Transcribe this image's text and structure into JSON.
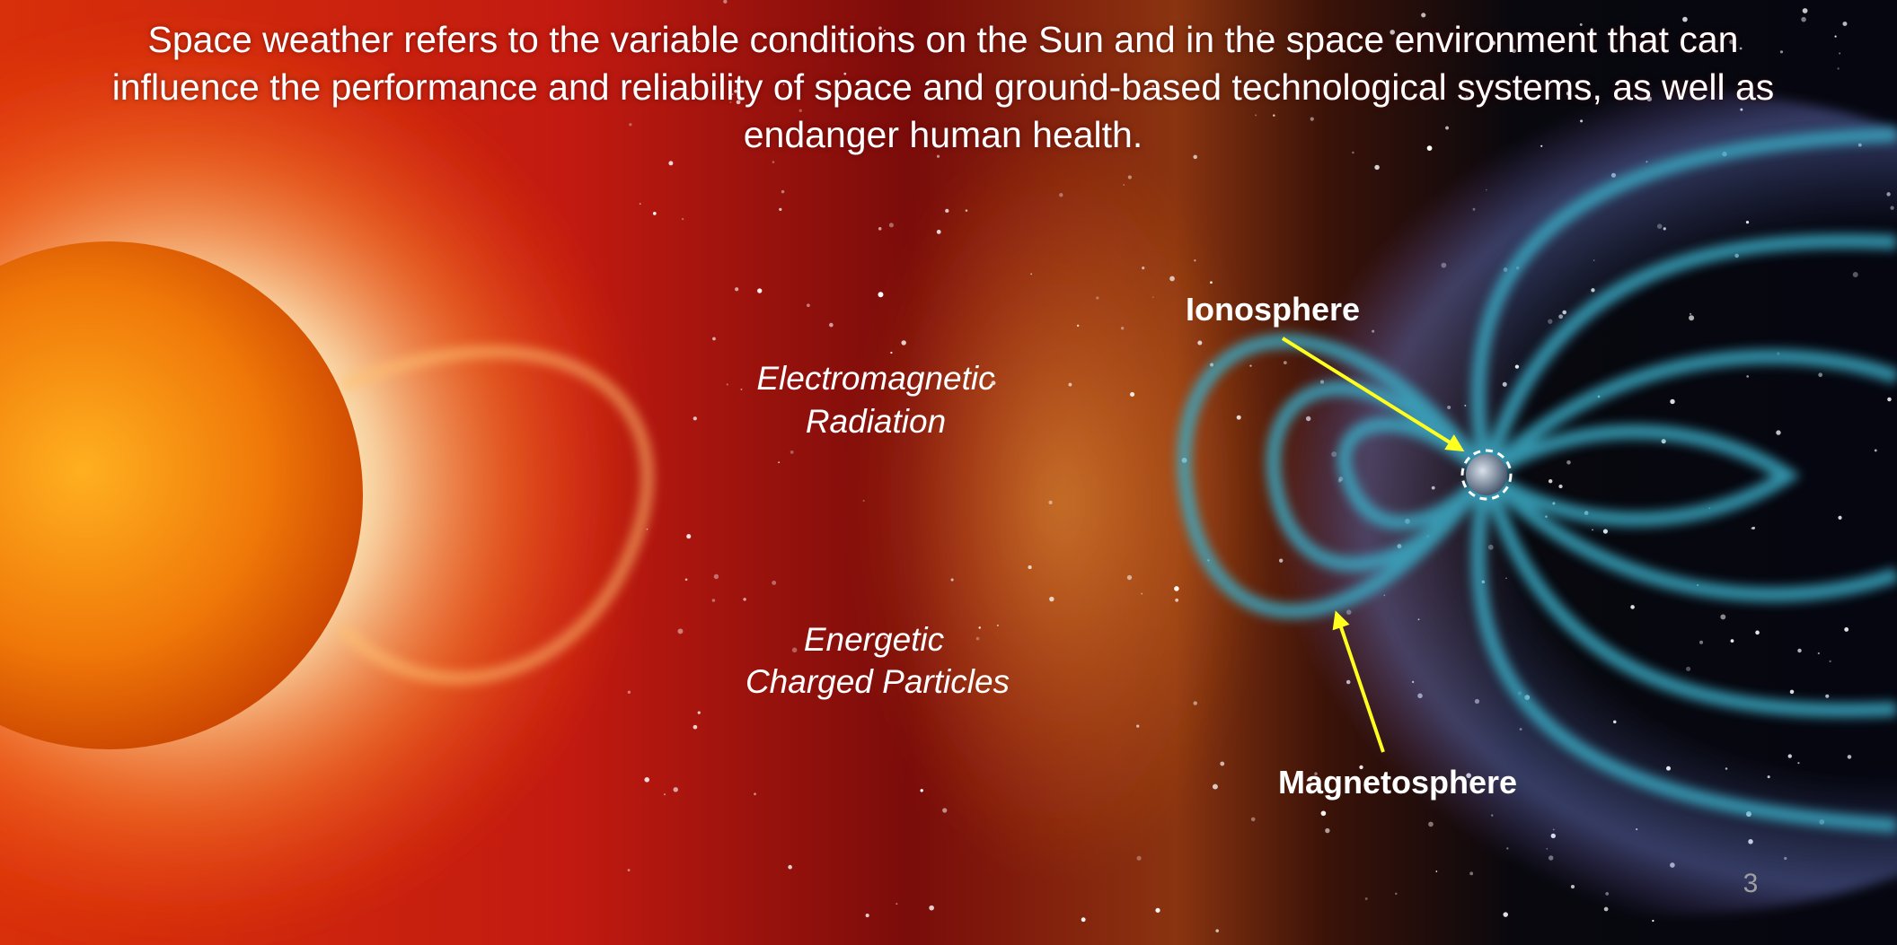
{
  "slide": {
    "paragraph": "Space weather refers to the variable conditions on the Sun and in the space environment that can influence the performance and reliability of space and ground-based technological systems, as well as endanger human health.",
    "radiation_label": [
      "Electromagnetic",
      "Radiation"
    ],
    "particles_label": [
      "Energetic",
      "Charged Particles"
    ],
    "ionosphere_label": "Ionosphere",
    "magnetosphere_label": "Magnetosphere",
    "page_number": 3
  }
}
